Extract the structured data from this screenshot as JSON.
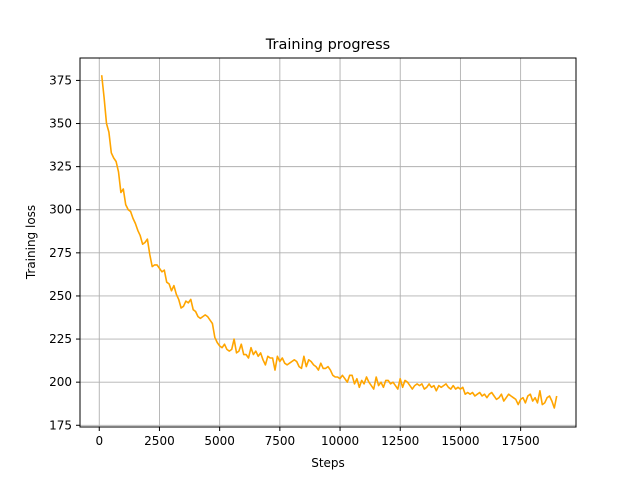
{
  "chart_data": {
    "type": "line",
    "title": "Training progress",
    "xlabel": "Steps",
    "ylabel": "Training loss",
    "xlim": [
      -800,
      19800
    ],
    "ylim": [
      174,
      388
    ],
    "xticks": [
      0,
      2500,
      5000,
      7500,
      10000,
      12500,
      15000,
      17500
    ],
    "yticks": [
      175,
      200,
      225,
      250,
      275,
      300,
      325,
      350,
      375
    ],
    "grid": true,
    "series": [
      {
        "color": "#ffa500",
        "x": [
          100,
          200,
          300,
          400,
          500,
          600,
          700,
          800,
          900,
          1000,
          1100,
          1200,
          1300,
          1400,
          1500,
          1600,
          1700,
          1800,
          1900,
          2000,
          2100,
          2200,
          2300,
          2400,
          2500,
          2600,
          2700,
          2800,
          2900,
          3000,
          3100,
          3200,
          3300,
          3400,
          3500,
          3600,
          3700,
          3800,
          3900,
          4000,
          4100,
          4200,
          4300,
          4400,
          4500,
          4600,
          4700,
          4800,
          4900,
          5000,
          5100,
          5200,
          5300,
          5400,
          5500,
          5600,
          5700,
          5800,
          5900,
          6000,
          6100,
          6200,
          6300,
          6400,
          6500,
          6600,
          6700,
          6800,
          6900,
          7000,
          7100,
          7200,
          7300,
          7400,
          7500,
          7600,
          7700,
          7800,
          7900,
          8000,
          8100,
          8200,
          8300,
          8400,
          8500,
          8600,
          8700,
          8800,
          8900,
          9000,
          9100,
          9200,
          9300,
          9400,
          9500,
          9600,
          9700,
          9800,
          9900,
          10000,
          10100,
          10200,
          10300,
          10400,
          10500,
          10600,
          10700,
          10800,
          10900,
          11000,
          11100,
          11200,
          11300,
          11400,
          11500,
          11600,
          11700,
          11800,
          11900,
          12000,
          12100,
          12200,
          12300,
          12400,
          12500,
          12600,
          12700,
          12800,
          12900,
          13000,
          13100,
          13200,
          13300,
          13400,
          13500,
          13600,
          13700,
          13800,
          13900,
          14000,
          14100,
          14200,
          14300,
          14400,
          14500,
          14600,
          14700,
          14800,
          14900,
          15000,
          15100,
          15200,
          15300,
          15400,
          15500,
          15600,
          15700,
          15800,
          15900,
          16000,
          16100,
          16200,
          16300,
          16400,
          16500,
          16600,
          16700,
          16800,
          16900,
          17000,
          17100,
          17200,
          17300,
          17400,
          17500,
          17600,
          17700,
          17800,
          17900,
          18000,
          18100,
          18200,
          18300,
          18400,
          18500,
          18600,
          18700,
          18800,
          18900,
          19000
        ],
        "y": [
          378,
          365,
          350,
          345,
          333,
          330,
          328,
          322,
          310,
          312,
          303,
          300,
          299,
          295,
          292,
          288,
          285,
          280,
          281,
          283,
          274,
          267,
          268,
          268,
          266,
          264,
          265,
          258,
          257,
          253,
          256,
          251,
          248,
          243,
          244,
          247,
          246,
          248,
          242,
          241,
          238,
          237,
          238,
          239,
          238,
          236,
          234,
          226,
          223,
          221,
          220,
          222,
          219,
          218,
          219,
          225,
          217,
          218,
          222,
          216,
          216,
          214,
          220,
          216,
          218,
          215,
          217,
          213,
          210,
          215,
          214,
          214,
          207,
          215,
          212,
          214,
          211,
          210,
          211,
          212,
          213,
          212,
          209,
          208,
          215,
          209,
          213,
          212,
          210,
          209,
          207,
          211,
          208,
          208,
          209,
          207,
          204,
          203,
          203,
          202,
          204,
          202,
          200,
          204,
          204,
          199,
          202,
          197,
          201,
          199,
          203,
          200,
          198,
          196,
          203,
          198,
          200,
          197,
          201,
          201,
          199,
          200,
          198,
          196,
          202,
          197,
          201,
          200,
          198,
          196,
          198,
          199,
          198,
          199,
          196,
          197,
          199,
          197,
          198,
          195,
          198,
          197,
          198,
          199,
          197,
          196,
          198,
          196,
          197,
          196,
          197,
          193,
          194,
          193,
          194,
          192,
          193,
          194,
          192,
          193,
          191,
          193,
          194,
          192,
          190,
          191,
          193,
          189,
          191,
          193,
          192,
          191,
          190,
          187,
          190,
          191,
          188,
          192,
          193,
          189,
          191,
          188,
          195,
          187,
          188,
          191,
          192,
          189,
          185,
          192
        ]
      }
    ]
  }
}
